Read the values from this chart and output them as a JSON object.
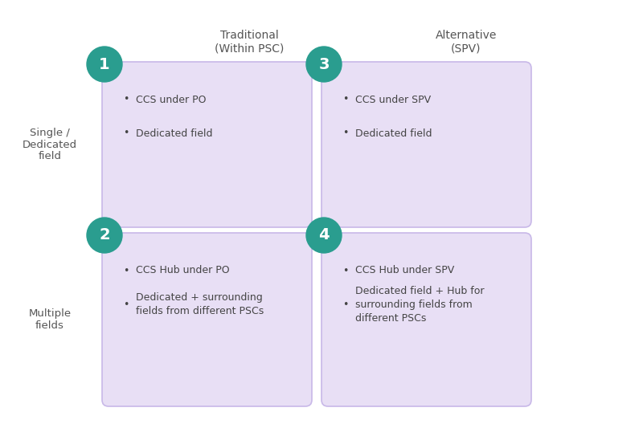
{
  "background_color": "#ffffff",
  "box_color": "#e8dff5",
  "box_edge_color": "#c8b8e8",
  "circle_color": "#2a9d8f",
  "circle_text_color": "#ffffff",
  "label_text_color": "#444444",
  "header_text_color": "#555555",
  "row_label_color": "#555555",
  "col_headers": [
    "Traditional\n(Within PSC)",
    "Alternative\n(SPV)"
  ],
  "row_labels": [
    "Single /\nDedicated\nfield",
    "Multiple\nfields"
  ],
  "quadrants": [
    {
      "number": "1",
      "col": 0,
      "row": 0,
      "bullets": [
        "CCS under PO",
        "Dedicated field"
      ]
    },
    {
      "number": "3",
      "col": 1,
      "row": 0,
      "bullets": [
        "CCS under SPV",
        "Dedicated field"
      ]
    },
    {
      "number": "2",
      "col": 0,
      "row": 1,
      "bullets": [
        "CCS Hub under PO",
        "Dedicated + surrounding\nfields from different PSCs"
      ]
    },
    {
      "number": "4",
      "col": 1,
      "row": 1,
      "bullets": [
        "CCS Hub under SPV",
        "Dedicated field + Hub for\nsurrounding fields from\ndifferent PSCs"
      ]
    }
  ],
  "fig_width": 8.0,
  "fig_height": 5.33,
  "dpi": 100
}
